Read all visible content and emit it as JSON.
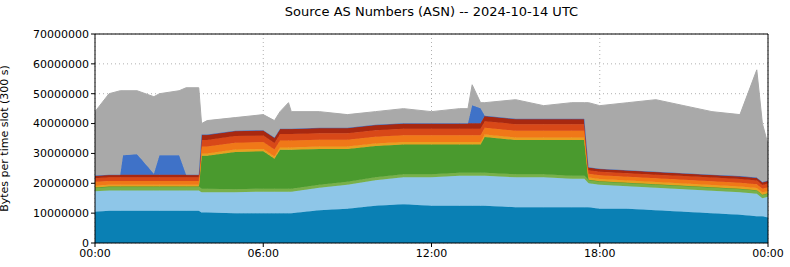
{
  "chart_data": {
    "type": "area",
    "stacked": true,
    "title": "Source AS Numbers (ASN) -- 2024-10-14 UTC",
    "y_label": "Bytes per time slot (300 s)",
    "grid": true,
    "x": [
      0,
      0.5,
      0.9,
      1,
      1.5,
      2.1,
      2.3,
      3,
      3.25,
      3.7,
      3.8,
      4,
      5,
      6,
      6.4,
      6.6,
      6.9,
      7,
      8,
      9,
      10,
      11,
      12,
      13,
      13.3,
      13.45,
      13.75,
      13.9,
      15,
      16,
      17,
      17.45,
      17.6,
      18,
      19,
      20,
      21,
      22,
      23,
      23.6,
      23.8,
      24
    ],
    "xlim": [
      0,
      24
    ],
    "xticks": [
      {
        "value": 0,
        "label": "00:00"
      },
      {
        "value": 6,
        "label": "06:00"
      },
      {
        "value": 12,
        "label": "12:00"
      },
      {
        "value": 18,
        "label": "18:00"
      },
      {
        "value": 24,
        "label": "00:00"
      }
    ],
    "ylim": [
      0,
      70000000
    ],
    "yticks": [
      0,
      10000000,
      20000000,
      30000000,
      40000000,
      50000000,
      60000000,
      70000000
    ],
    "series": [
      {
        "color": "#0a80b4",
        "values": [
          10500000,
          10800000,
          10800000,
          10800000,
          10800000,
          10800000,
          10800000,
          10800000,
          10800000,
          10800000,
          10200000,
          10200000,
          10000000,
          10000000,
          10000000,
          10000000,
          10000000,
          10000000,
          11000000,
          11500000,
          12500000,
          13000000,
          12500000,
          12500000,
          12500000,
          12500000,
          12500000,
          12500000,
          12000000,
          12000000,
          12000000,
          12000000,
          12000000,
          11500000,
          11500000,
          11000000,
          10500000,
          10000000,
          9500000,
          9000000,
          9000000,
          8500000
        ]
      },
      {
        "color": "#8ec6e8",
        "values": [
          6800000,
          6800000,
          6800000,
          6800000,
          6800000,
          6800000,
          6800000,
          6800000,
          6800000,
          6800000,
          6800000,
          6800000,
          7000000,
          7200000,
          7200000,
          7200000,
          7200000,
          7200000,
          7500000,
          8000000,
          8500000,
          9000000,
          9500000,
          10000000,
          10000000,
          10000000,
          10000000,
          10000000,
          10000000,
          10000000,
          9500000,
          9500000,
          8000000,
          8000000,
          7500000,
          7500000,
          7500000,
          7500000,
          7500000,
          7500000,
          6000000,
          7000000
        ]
      },
      {
        "color": "#78b04a",
        "values": [
          1300000,
          1300000,
          1300000,
          1300000,
          1300000,
          1300000,
          1300000,
          1300000,
          1300000,
          1300000,
          1200000,
          1200000,
          1000000,
          1000000,
          1000000,
          1000000,
          1000000,
          1000000,
          1000000,
          1000000,
          1000000,
          1000000,
          1000000,
          1000000,
          1000000,
          1000000,
          1000000,
          1000000,
          1000000,
          1000000,
          1000000,
          1000000,
          1200000,
          1200000,
          1200000,
          1200000,
          1200000,
          1200000,
          1200000,
          1200000,
          1200000,
          1200000
        ]
      },
      {
        "color": "#4a9a2e",
        "values": [
          0,
          0,
          0,
          0,
          0,
          0,
          0,
          0,
          0,
          0,
          11000000,
          11000000,
          12500000,
          12500000,
          10000000,
          13000000,
          13000000,
          13000000,
          12000000,
          11000000,
          10500000,
          10000000,
          10000000,
          9500000,
          9500000,
          9500000,
          9500000,
          12000000,
          11500000,
          11500000,
          12000000,
          12000000,
          0,
          0,
          0,
          0,
          0,
          0,
          0,
          0,
          0,
          0
        ]
      },
      {
        "color": "#e8a020",
        "values": [
          600000,
          600000,
          600000,
          600000,
          600000,
          600000,
          600000,
          600000,
          600000,
          600000,
          800000,
          800000,
          800000,
          800000,
          800000,
          800000,
          800000,
          800000,
          800000,
          800000,
          800000,
          800000,
          800000,
          800000,
          800000,
          800000,
          800000,
          800000,
          800000,
          800000,
          800000,
          800000,
          700000,
          700000,
          700000,
          700000,
          700000,
          700000,
          700000,
          700000,
          700000,
          700000
        ]
      },
      {
        "color": "#f07818",
        "values": [
          1300000,
          1300000,
          1300000,
          1300000,
          1300000,
          1300000,
          1300000,
          1300000,
          1300000,
          1300000,
          2300000,
          2300000,
          2300000,
          2300000,
          2300000,
          2300000,
          2300000,
          2300000,
          2300000,
          2300000,
          2300000,
          2300000,
          2300000,
          2300000,
          2300000,
          2300000,
          2300000,
          2300000,
          2300000,
          2300000,
          2300000,
          2300000,
          1300000,
          1300000,
          1300000,
          1300000,
          1300000,
          1300000,
          1300000,
          1300000,
          1300000,
          1300000
        ]
      },
      {
        "color": "#d84818",
        "values": [
          1200000,
          1200000,
          1200000,
          1200000,
          1200000,
          1200000,
          1200000,
          1200000,
          1200000,
          1200000,
          2200000,
          2200000,
          2200000,
          2200000,
          2200000,
          2200000,
          2200000,
          2200000,
          2200000,
          2200000,
          2200000,
          2200000,
          2200000,
          2200000,
          2200000,
          2200000,
          2200000,
          2200000,
          2200000,
          2200000,
          2200000,
          2200000,
          1200000,
          1200000,
          1200000,
          1200000,
          1200000,
          1200000,
          1200000,
          1200000,
          1200000,
          1200000
        ]
      },
      {
        "color": "#a82810",
        "values": [
          900000,
          900000,
          900000,
          900000,
          900000,
          900000,
          900000,
          900000,
          900000,
          900000,
          1800000,
          1800000,
          1800000,
          1800000,
          1800000,
          1800000,
          1800000,
          1800000,
          1800000,
          1800000,
          1800000,
          1800000,
          1800000,
          1800000,
          1800000,
          1800000,
          1800000,
          1800000,
          1800000,
          1800000,
          1800000,
          1800000,
          1000000,
          1000000,
          1000000,
          1000000,
          1000000,
          1000000,
          1000000,
          1000000,
          1000000,
          1000000
        ]
      },
      {
        "color": "#3f72c8",
        "values": [
          0,
          0,
          0,
          6500000,
          6800000,
          300000,
          6500000,
          6500000,
          0,
          0,
          0,
          0,
          0,
          0,
          0,
          0,
          0,
          0,
          0,
          0,
          0,
          0,
          0,
          0,
          0,
          6000000,
          5000000,
          0,
          0,
          0,
          0,
          0,
          0,
          0,
          0,
          0,
          0,
          0,
          0,
          0,
          0,
          0
        ]
      },
      {
        "color": "#a9a9a9",
        "values": [
          21400000,
          27100000,
          28100000,
          21600000,
          21300000,
          25800000,
          20600000,
          21600000,
          29100000,
          29100000,
          3700000,
          4700000,
          4400000,
          5200000,
          5700000,
          5700000,
          8700000,
          5700000,
          5400000,
          4400000,
          4400000,
          4900000,
          3900000,
          4900000,
          4900000,
          6900000,
          1900000,
          4400000,
          6400000,
          4400000,
          5400000,
          5400000,
          21600000,
          21100000,
          22600000,
          24100000,
          22600000,
          21100000,
          20600000,
          36100000,
          19600000,
          12100000
        ]
      }
    ]
  }
}
